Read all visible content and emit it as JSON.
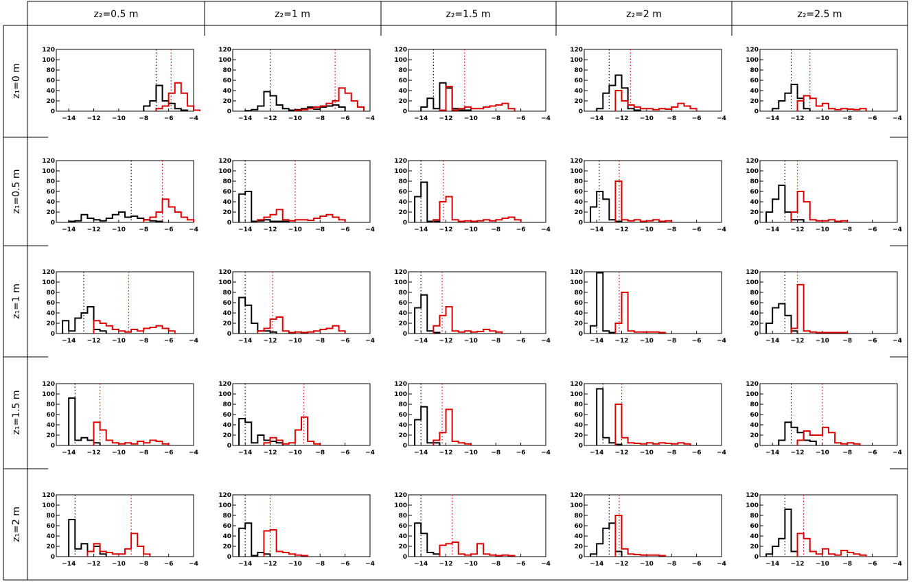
{
  "chart_data": {
    "type": "histogram-grid",
    "column_headers": [
      "z₂=0.5 m",
      "z₂=1 m",
      "z₂=1.5 m",
      "z₂=2 m",
      "z₂=2.5 m"
    ],
    "row_headers": [
      "z₁=0 m",
      "z₁=0.5 m",
      "z₁=1 m",
      "z₁=1.5 m",
      "z₁=2 m"
    ],
    "x_ticks": [
      -14,
      -12,
      -10,
      -8,
      -6,
      -4
    ],
    "y_ticks": [
      0,
      20,
      40,
      60,
      80,
      100,
      120
    ],
    "xlim": [
      -15,
      -4
    ],
    "ylim": [
      0,
      120
    ],
    "bin_width": 0.5,
    "series_colors": {
      "black": "#000000",
      "red": "#dd0000"
    },
    "panels": [
      [
        {
          "black": {
            "start": -8.0,
            "counts": [
              10,
              20,
              50,
              20,
              15,
              5,
              2
            ]
          },
          "red": {
            "start": -7.0,
            "counts": [
              5,
              10,
              35,
              55,
              35,
              10,
              2
            ]
          },
          "black_mean": -7.0,
          "red_mean": -5.8
        },
        {
          "black": {
            "start": -14.0,
            "counts": [
              1,
              3,
              10,
              38,
              30,
              12,
              5,
              2,
              3,
              5,
              8,
              4,
              8,
              10,
              12,
              8
            ]
          },
          "red": {
            "start": -10.0,
            "counts": [
              2,
              3,
              5,
              8,
              10,
              15,
              20,
              45,
              35,
              20,
              8
            ]
          },
          "black_mean": -12.0,
          "red_mean": -6.8
        },
        {
          "black": {
            "start": -14.0,
            "counts": [
              8,
              25,
              5,
              55,
              45,
              5,
              2,
              2
            ]
          },
          "red": {
            "start": -12.5,
            "counts": [
              2,
              48,
              2,
              5,
              8,
              5,
              5,
              8,
              10,
              12,
              15,
              5
            ]
          },
          "black_mean": -13.0,
          "red_mean": -10.5
        },
        {
          "black": {
            "start": -14.0,
            "counts": [
              5,
              35,
              50,
              70,
              45,
              5,
              2
            ]
          },
          "red": {
            "start": -12.5,
            "counts": [
              40,
              20,
              12,
              8,
              5,
              5,
              3,
              5,
              4,
              8,
              15,
              10,
              5
            ]
          },
          "black_mean": -13.0,
          "red_mean": -11.3
        },
        {
          "black": {
            "start": -14.0,
            "counts": [
              5,
              20,
              35,
              52,
              25,
              5
            ]
          },
          "red": {
            "start": -12.0,
            "counts": [
              20,
              30,
              25,
              10,
              15,
              5,
              3,
              5,
              4,
              3,
              5
            ]
          },
          "black_mean": -12.5,
          "red_mean": -11.0
        }
      ],
      [
        {
          "black": {
            "start": -14.0,
            "counts": [
              2,
              3,
              15,
              8,
              5,
              3,
              8,
              15,
              20,
              10,
              12,
              8,
              5,
              3,
              2
            ]
          },
          "red": {
            "start": -8.0,
            "counts": [
              5,
              10,
              20,
              45,
              30,
              20,
              10,
              5
            ]
          },
          "black_mean": -9.0,
          "red_mean": -6.5
        },
        {
          "black": {
            "start": -14.5,
            "counts": [
              55,
              60,
              2,
              3,
              5,
              2,
              2,
              2
            ]
          },
          "red": {
            "start": -13.0,
            "counts": [
              5,
              10,
              15,
              25,
              5,
              3,
              5,
              5,
              4,
              8,
              12,
              15,
              10,
              5
            ]
          },
          "black_mean": -14.0,
          "red_mean": -10.0
        },
        {
          "black": {
            "start": -14.5,
            "counts": [
              50,
              78,
              2,
              2
            ]
          },
          "red": {
            "start": -13.0,
            "counts": [
              5,
              40,
              50,
              5,
              2,
              3,
              2,
              3,
              5,
              3,
              5,
              8,
              10,
              5
            ]
          },
          "black_mean": -14.0,
          "red_mean": -12.2
        },
        {
          "black": {
            "start": -14.5,
            "counts": [
              30,
              60,
              45,
              5,
              2
            ]
          },
          "red": {
            "start": -12.5,
            "counts": [
              80,
              5,
              3,
              5,
              2,
              3,
              5,
              2,
              3
            ]
          },
          "black_mean": -13.8,
          "red_mean": -12.2
        },
        {
          "black": {
            "start": -14.5,
            "counts": [
              20,
              45,
              72,
              20,
              5,
              5
            ]
          },
          "red": {
            "start": -12.5,
            "counts": [
              20,
              60,
              40,
              5,
              3,
              3,
              5,
              2,
              3
            ]
          },
          "black_mean": -13.0,
          "red_mean": -12.0
        }
      ],
      [
        {
          "black": {
            "start": -14.5,
            "counts": [
              25,
              5,
              30,
              40,
              52,
              8,
              5
            ]
          },
          "red": {
            "start": -12.0,
            "counts": [
              25,
              20,
              15,
              8,
              5,
              3,
              8,
              5,
              10,
              12,
              15,
              10,
              5
            ]
          },
          "black_mean": -12.8,
          "red_mean": -9.2
        },
        {
          "black": {
            "start": -14.5,
            "counts": [
              70,
              55,
              20,
              5,
              5,
              3
            ]
          },
          "red": {
            "start": -13.0,
            "counts": [
              5,
              10,
              28,
              32,
              5,
              2,
              3,
              2,
              3,
              5,
              8,
              10,
              15,
              5
            ]
          },
          "black_mean": -14.0,
          "red_mean": -11.8
        },
        {
          "black": {
            "start": -14.5,
            "counts": [
              50,
              75,
              5,
              2
            ]
          },
          "red": {
            "start": -13.0,
            "counts": [
              15,
              35,
              52,
              5,
              3,
              5,
              3,
              4,
              8,
              5,
              3
            ]
          },
          "black_mean": -14.0,
          "red_mean": -12.3
        },
        {
          "black": {
            "start": -14.5,
            "counts": [
              15,
              118,
              5,
              2
            ]
          },
          "red": {
            "start": -12.5,
            "counts": [
              20,
              80,
              5,
              3,
              3,
              3,
              3,
              2
            ]
          },
          "black_mean": -14.0,
          "red_mean": -12.2
        },
        {
          "black": {
            "start": -14.5,
            "counts": [
              20,
              50,
              58,
              35,
              5
            ]
          },
          "red": {
            "start": -12.5,
            "counts": [
              10,
              95,
              5,
              3,
              2,
              2,
              2,
              2,
              2
            ]
          },
          "black_mean": -13.0,
          "red_mean": -12.0
        }
      ],
      [
        {
          "black": {
            "start": -14.0,
            "counts": [
              92,
              10,
              15,
              10,
              5
            ]
          },
          "red": {
            "start": -12.0,
            "counts": [
              45,
              30,
              10,
              5,
              3,
              5,
              3,
              8,
              5,
              10,
              8,
              3
            ]
          },
          "black_mean": -13.5,
          "red_mean": -11.5
        },
        {
          "black": {
            "start": -14.5,
            "counts": [
              52,
              45,
              5,
              20,
              10,
              8,
              5
            ]
          },
          "red": {
            "start": -12.5,
            "counts": [
              5,
              15,
              10,
              3,
              5,
              30,
              55,
              8,
              3
            ]
          },
          "black_mean": -14.0,
          "red_mean": -9.3
        },
        {
          "black": {
            "start": -14.5,
            "counts": [
              50,
              75,
              5,
              5
            ]
          },
          "red": {
            "start": -13.0,
            "counts": [
              10,
              25,
              70,
              8,
              5,
              3
            ]
          },
          "black_mean": -14.0,
          "red_mean": -12.3
        },
        {
          "black": {
            "start": -14.0,
            "counts": [
              110,
              15,
              5,
              2
            ]
          },
          "red": {
            "start": -12.5,
            "counts": [
              80,
              15,
              5,
              4,
              3,
              5,
              3,
              5,
              4,
              3,
              5,
              3
            ]
          },
          "black_mean": -13.5,
          "red_mean": -12.0
        },
        {
          "black": {
            "start": -13.5,
            "counts": [
              10,
              45,
              35,
              25,
              10,
              8
            ]
          },
          "red": {
            "start": -12.0,
            "counts": [
              10,
              28,
              20,
              20,
              35,
              25,
              5,
              3,
              5,
              3
            ]
          },
          "black_mean": -12.5,
          "red_mean": -10.0
        }
      ],
      [
        {
          "black": {
            "start": -14.0,
            "counts": [
              72,
              15,
              25,
              10,
              20,
              5
            ]
          },
          "red": {
            "start": -12.5,
            "counts": [
              10,
              25,
              10,
              8,
              5,
              5,
              15,
              45,
              20,
              5
            ]
          },
          "black_mean": -13.5,
          "red_mean": -9.0
        },
        {
          "black": {
            "start": -14.5,
            "counts": [
              55,
              65,
              2,
              8,
              5
            ]
          },
          "red": {
            "start": -12.5,
            "counts": [
              50,
              52,
              10,
              8,
              5,
              3,
              2
            ]
          },
          "black_mean": -14.0,
          "red_mean": -12.0
        },
        {
          "black": {
            "start": -14.5,
            "counts": [
              65,
              45,
              8,
              5
            ]
          },
          "red": {
            "start": -12.5,
            "counts": [
              22,
              25,
              28,
              5,
              3,
              5,
              25,
              5,
              3,
              2,
              3,
              2
            ]
          },
          "black_mean": -14.0,
          "red_mean": -11.5
        },
        {
          "black": {
            "start": -14.5,
            "counts": [
              5,
              25,
              55,
              65,
              10
            ]
          },
          "red": {
            "start": -12.5,
            "counts": [
              80,
              15,
              5,
              4,
              3,
              3,
              3,
              2
            ]
          },
          "black_mean": -13.0,
          "red_mean": -12.2
        },
        {
          "black": {
            "start": -14.5,
            "counts": [
              5,
              20,
              35,
              92,
              10
            ]
          },
          "red": {
            "start": -12.0,
            "counts": [
              45,
              35,
              10,
              5,
              15,
              5,
              3,
              12,
              8,
              5,
              3
            ]
          },
          "black_mean": -13.0,
          "red_mean": -11.5
        }
      ]
    ]
  }
}
